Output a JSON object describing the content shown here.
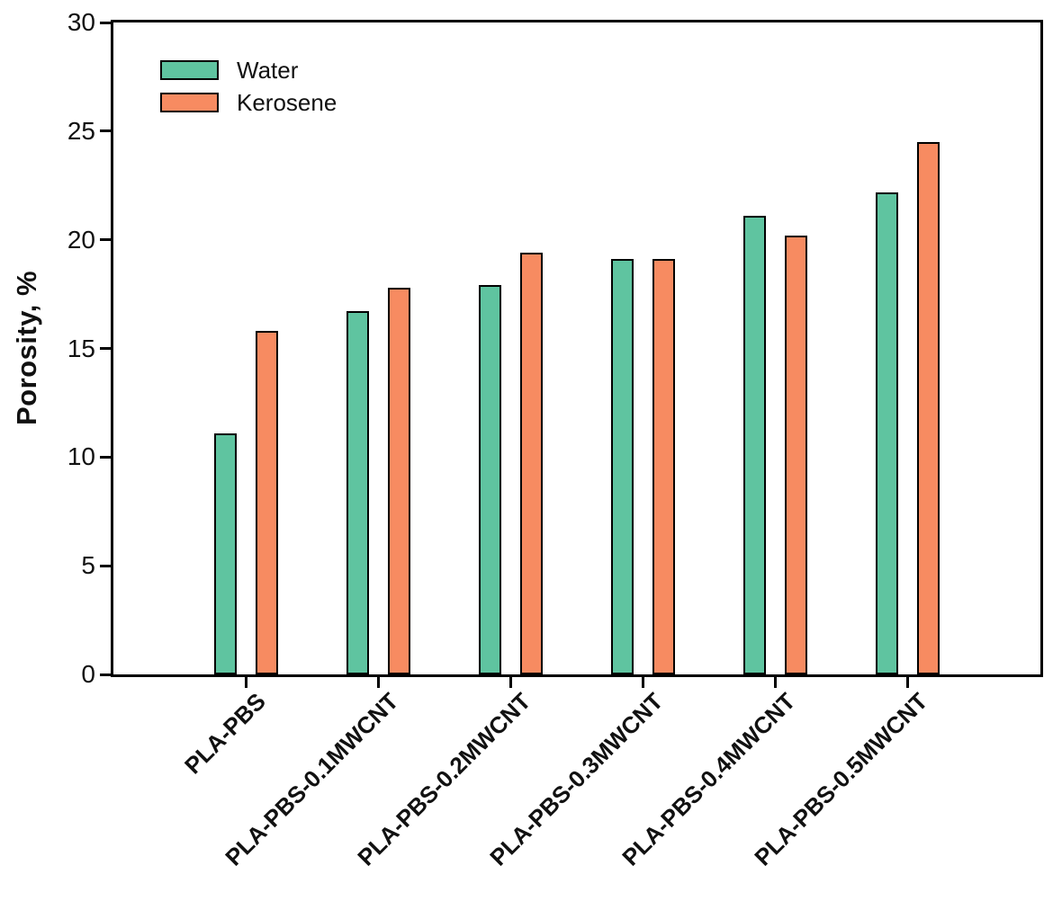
{
  "chart_data": {
    "type": "bar",
    "title": "",
    "xlabel": "",
    "ylabel": "Porosity, %",
    "categories": [
      "PLA-PBS",
      "PLA-PBS-0.1MWCNT",
      "PLA-PBS-0.2MWCNT",
      "PLA-PBS-0.3MWCNT",
      "PLA-PBS-0.4MWCNT",
      "PLA-PBS-0.5MWCNT"
    ],
    "series": [
      {
        "name": "Water",
        "color": "#5fc4a0",
        "values": [
          11.1,
          16.7,
          17.9,
          19.1,
          21.1,
          22.2
        ]
      },
      {
        "name": "Kerosene",
        "color": "#f78b61",
        "values": [
          15.8,
          17.8,
          19.4,
          19.1,
          20.2,
          24.5
        ]
      }
    ],
    "ylim": [
      0,
      30
    ],
    "yticks": [
      0,
      5,
      10,
      15,
      20,
      25,
      30
    ],
    "grid": false,
    "legend_position": "upper-left",
    "bar_outline_color": "#000000",
    "axis_color": "#000000",
    "background_color": "#ffffff",
    "xtick_label_rotation_deg": 45
  }
}
